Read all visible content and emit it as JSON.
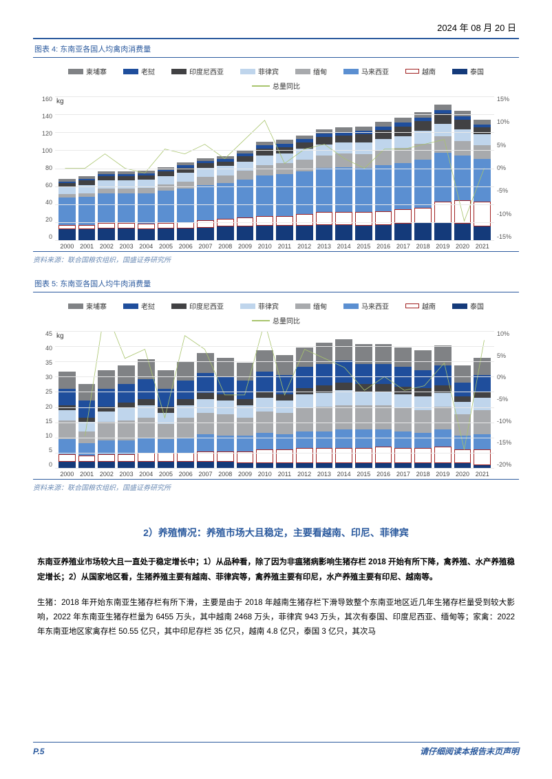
{
  "date": "2024 年 08 月 20 日",
  "chart4": {
    "type": "stacked_bar_with_line",
    "title_num": "图表 4:",
    "title": "东南亚各国人均禽肉消费量",
    "caption": "资料来源：联合国粮农组织，国盛证券研究所",
    "y_unit": "kg",
    "y_left": {
      "min": 0,
      "max": 160,
      "step": 20
    },
    "y_right": {
      "min": -15,
      "max": 15,
      "step": 5,
      "suffix": "%"
    },
    "years": [
      "2000",
      "2001",
      "2002",
      "2003",
      "2004",
      "2005",
      "2006",
      "2007",
      "2008",
      "2009",
      "2010",
      "2011",
      "2012",
      "2013",
      "2014",
      "2015",
      "2016",
      "2017",
      "2018",
      "2019",
      "2020",
      "2021"
    ],
    "series_order": [
      "thailand",
      "vietnam",
      "malaysia",
      "myanmar",
      "philippines",
      "indonesia",
      "laos",
      "cambodia"
    ],
    "series": {
      "cambodia": {
        "label": "柬埔寨",
        "color": "#808285",
        "style": "bar"
      },
      "laos": {
        "label": "老挝",
        "color": "#1f4e9c",
        "style": "bar"
      },
      "indonesia": {
        "label": "配印度尼西亚",
        "real_label": "印度尼西亚",
        "color": "#414143",
        "style": "bar"
      },
      "philippines": {
        "label": "菲律宾",
        "color": "#bfd5ec",
        "style": "bar"
      },
      "myanmar": {
        "label": "缅甸",
        "color": "#a8aaad",
        "style": "bar"
      },
      "malaysia": {
        "label": "马来西亚",
        "color": "#5b8fd1",
        "style": "bar"
      },
      "vietnam": {
        "label": "越南",
        "color": "#ffffff",
        "border": "#a02020",
        "style": "box"
      },
      "thailand": {
        "label": "泰国",
        "color": "#143a7a",
        "style": "bar"
      },
      "total_yoy": {
        "label": "总量同比",
        "color": "#a8c46c",
        "style": "line"
      }
    },
    "stacks": [
      {
        "thailand": 12,
        "vietnam": 5,
        "malaysia": 30,
        "myanmar": 4,
        "philippines": 8,
        "indonesia": 4,
        "laos": 2,
        "cambodia": 3
      },
      {
        "thailand": 12,
        "vietnam": 5,
        "malaysia": 31,
        "myanmar": 4,
        "philippines": 9,
        "indonesia": 5,
        "laos": 2,
        "cambodia": 3
      },
      {
        "thailand": 13,
        "vietnam": 6,
        "malaysia": 33,
        "myanmar": 5,
        "philippines": 9,
        "indonesia": 5,
        "laos": 2,
        "cambodia": 3
      },
      {
        "thailand": 13,
        "vietnam": 6,
        "malaysia": 33,
        "myanmar": 5,
        "philippines": 9,
        "indonesia": 5,
        "laos": 2,
        "cambodia": 3
      },
      {
        "thailand": 12,
        "vietnam": 6,
        "malaysia": 34,
        "myanmar": 6,
        "philippines": 9,
        "indonesia": 5,
        "laos": 2,
        "cambodia": 3
      },
      {
        "thailand": 13,
        "vietnam": 6,
        "malaysia": 36,
        "myanmar": 7,
        "philippines": 9,
        "indonesia": 5,
        "laos": 2,
        "cambodia": 3
      },
      {
        "thailand": 13,
        "vietnam": 7,
        "malaysia": 37,
        "myanmar": 8,
        "philippines": 10,
        "indonesia": 5,
        "laos": 3,
        "cambodia": 3
      },
      {
        "thailand": 14,
        "vietnam": 8,
        "malaysia": 39,
        "myanmar": 9,
        "philippines": 10,
        "indonesia": 5,
        "laos": 3,
        "cambodia": 3
      },
      {
        "thailand": 15,
        "vietnam": 9,
        "malaysia": 39,
        "myanmar": 9,
        "philippines": 10,
        "indonesia": 5,
        "laos": 3,
        "cambodia": 3
      },
      {
        "thailand": 15,
        "vietnam": 10,
        "malaysia": 42,
        "myanmar": 10,
        "philippines": 10,
        "indonesia": 6,
        "laos": 3,
        "cambodia": 3
      },
      {
        "thailand": 16,
        "vietnam": 11,
        "malaysia": 45,
        "myanmar": 11,
        "philippines": 11,
        "indonesia": 7,
        "laos": 4,
        "cambodia": 4
      },
      {
        "thailand": 16,
        "vietnam": 11,
        "malaysia": 46,
        "myanmar": 12,
        "philippines": 11,
        "indonesia": 7,
        "laos": 4,
        "cambodia": 4
      },
      {
        "thailand": 16,
        "vietnam": 13,
        "malaysia": 47,
        "myanmar": 13,
        "philippines": 12,
        "indonesia": 7,
        "laos": 4,
        "cambodia": 4
      },
      {
        "thailand": 17,
        "vietnam": 14,
        "malaysia": 49,
        "myanmar": 14,
        "philippines": 12,
        "indonesia": 8,
        "laos": 4,
        "cambodia": 5
      },
      {
        "thailand": 17,
        "vietnam": 14,
        "malaysia": 50,
        "myanmar": 15,
        "philippines": 12,
        "indonesia": 8,
        "laos": 4,
        "cambodia": 5
      },
      {
        "thailand": 16,
        "vietnam": 15,
        "malaysia": 49,
        "myanmar": 15,
        "philippines": 13,
        "indonesia": 9,
        "laos": 4,
        "cambodia": 5
      },
      {
        "thailand": 17,
        "vietnam": 15,
        "malaysia": 51,
        "myanmar": 16,
        "philippines": 13,
        "indonesia": 10,
        "laos": 4,
        "cambodia": 5
      },
      {
        "thailand": 18,
        "vietnam": 16,
        "malaysia": 51,
        "myanmar": 17,
        "philippines": 13,
        "indonesia": 11,
        "laos": 4,
        "cambodia": 6
      },
      {
        "thailand": 19,
        "vietnam": 17,
        "malaysia": 53,
        "myanmar": 18,
        "philippines": 14,
        "indonesia": 11,
        "laos": 4,
        "cambodia": 6
      },
      {
        "thailand": 19,
        "vietnam": 24,
        "malaysia": 54,
        "myanmar": 18,
        "philippines": 14,
        "indonesia": 11,
        "laos": 4,
        "cambodia": 6
      },
      {
        "thailand": 18,
        "vietnam": 26,
        "malaysia": 50,
        "myanmar": 16,
        "philippines": 13,
        "indonesia": 10,
        "laos": 4,
        "cambodia": 6
      },
      {
        "thailand": 15,
        "vietnam": 28,
        "malaysia": 47,
        "myanmar": 15,
        "philippines": 12,
        "indonesia": 8,
        "laos": 3,
        "cambodia": 5
      }
    ],
    "line": [
      0,
      0,
      3,
      0,
      -1,
      4,
      3,
      5,
      2,
      6,
      10,
      1,
      4,
      5,
      2,
      0,
      4,
      4,
      5,
      6,
      -11,
      0
    ]
  },
  "chart5": {
    "type": "stacked_bar_with_line",
    "title_num": "图表 5:",
    "title": "东南亚各国人均牛肉消费量",
    "caption": "资料来源：联合国粮农组织，国盛证券研究所",
    "y_unit": "kg",
    "y_left": {
      "min": 0,
      "max": 45,
      "step": 5
    },
    "y_right": {
      "min": -20,
      "max": 10,
      "step": 5,
      "suffix": "%"
    },
    "years": [
      "2000",
      "2001",
      "2002",
      "2003",
      "2004",
      "2005",
      "2006",
      "2007",
      "2008",
      "2009",
      "2010",
      "2011",
      "2012",
      "2013",
      "2014",
      "2015",
      "2016",
      "2017",
      "2018",
      "2019",
      "2020",
      "2021"
    ],
    "series_order": [
      "thailand",
      "vietnam",
      "malaysia",
      "myanmar",
      "philippines",
      "indonesia",
      "laos",
      "cambodia"
    ],
    "series": {
      "cambodia": {
        "label": "柬埔寨",
        "color": "#808285",
        "style": "bar"
      },
      "laos": {
        "label": "老挝",
        "color": "#1f4e9c",
        "style": "bar"
      },
      "indonesia": {
        "label": "印度尼西亚",
        "color": "#414143",
        "style": "bar"
      },
      "philippines": {
        "label": "菲律宾",
        "color": "#bfd5ec",
        "style": "bar"
      },
      "myanmar": {
        "label": "缅甸",
        "color": "#a8aaad",
        "style": "bar"
      },
      "malaysia": {
        "label": "马来西亚",
        "color": "#5b8fd1",
        "style": "bar"
      },
      "vietnam": {
        "label": "越南",
        "color": "#ffffff",
        "border": "#a02020",
        "style": "box"
      },
      "thailand": {
        "label": "泰国",
        "color": "#143a7a",
        "style": "bar"
      },
      "total_yoy": {
        "label": "总量同比",
        "color": "#a8c46c",
        "style": "line"
      }
    },
    "stacks": [
      {
        "thailand": 2.0,
        "vietnam": 2.5,
        "malaysia": 5.0,
        "myanmar": 6.0,
        "philippines": 3.5,
        "indonesia": 1.5,
        "laos": 5.5,
        "cambodia": 5.5
      },
      {
        "thailand": 2.0,
        "vietnam": 2.0,
        "malaysia": 4.0,
        "myanmar": 4.0,
        "philippines": 3.0,
        "indonesia": 1.5,
        "laos": 5.5,
        "cambodia": 5.5
      },
      {
        "thailand": 2.0,
        "vietnam": 2.5,
        "malaysia": 4.5,
        "myanmar": 6.0,
        "philippines": 3.5,
        "indonesia": 1.5,
        "laos": 6.0,
        "cambodia": 6.0
      },
      {
        "thailand": 2.0,
        "vietnam": 2.5,
        "malaysia": 4.5,
        "myanmar": 6.5,
        "philippines": 4.0,
        "indonesia": 2.0,
        "laos": 6.0,
        "cambodia": 6.0
      },
      {
        "thailand": 2.0,
        "vietnam": 3.0,
        "malaysia": 5.0,
        "myanmar": 6.5,
        "philippines": 4.0,
        "indonesia": 2.0,
        "laos": 6.5,
        "cambodia": 6.5
      },
      {
        "thailand": 2.0,
        "vietnam": 3.0,
        "malaysia": 4.5,
        "myanmar": 5.0,
        "philippines": 3.5,
        "indonesia": 2.0,
        "laos": 6.0,
        "cambodia": 6.0
      },
      {
        "thailand": 2.0,
        "vietnam": 3.0,
        "malaysia": 5.0,
        "myanmar": 6.5,
        "philippines": 4.0,
        "indonesia": 2.0,
        "laos": 6.0,
        "cambodia": 6.5
      },
      {
        "thailand": 2.0,
        "vietnam": 3.5,
        "malaysia": 5.5,
        "myanmar": 7.0,
        "philippines": 4.5,
        "indonesia": 2.0,
        "laos": 6.5,
        "cambodia": 6.5
      },
      {
        "thailand": 2.0,
        "vietnam": 3.5,
        "malaysia": 5.0,
        "myanmar": 7.0,
        "philippines": 4.5,
        "indonesia": 2.0,
        "laos": 6.0,
        "cambodia": 6.0
      },
      {
        "thailand": 1.5,
        "vietnam": 4.0,
        "malaysia": 5.0,
        "myanmar": 6.0,
        "philippines": 4.0,
        "indonesia": 2.0,
        "laos": 6.0,
        "cambodia": 6.0
      },
      {
        "thailand": 1.5,
        "vietnam": 4.5,
        "malaysia": 5.5,
        "myanmar": 7.0,
        "philippines": 4.5,
        "indonesia": 2.0,
        "laos": 6.5,
        "cambodia": 7.0
      },
      {
        "thailand": 1.5,
        "vietnam": 4.5,
        "malaysia": 5.0,
        "myanmar": 7.0,
        "philippines": 4.0,
        "indonesia": 2.0,
        "laos": 6.5,
        "cambodia": 6.5
      },
      {
        "thailand": 1.5,
        "vietnam": 5.0,
        "malaysia": 5.5,
        "myanmar": 7.5,
        "philippines": 4.5,
        "indonesia": 2.0,
        "laos": 7.0,
        "cambodia": 6.5
      },
      {
        "thailand": 1.5,
        "vietnam": 5.0,
        "malaysia": 5.5,
        "myanmar": 8.0,
        "philippines": 4.5,
        "indonesia": 2.5,
        "laos": 7.0,
        "cambodia": 7.0
      },
      {
        "thailand": 1.5,
        "vietnam": 5.0,
        "malaysia": 6.0,
        "myanmar": 8.0,
        "philippines": 5.0,
        "indonesia": 2.5,
        "laos": 7.0,
        "cambodia": 7.0
      },
      {
        "thailand": 1.5,
        "vietnam": 5.0,
        "malaysia": 6.0,
        "myanmar": 8.0,
        "philippines": 4.5,
        "indonesia": 2.5,
        "laos": 6.5,
        "cambodia": 6.5
      },
      {
        "thailand": 1.5,
        "vietnam": 5.5,
        "malaysia": 5.5,
        "myanmar": 8.0,
        "philippines": 4.5,
        "indonesia": 2.5,
        "laos": 6.5,
        "cambodia": 6.5
      },
      {
        "thailand": 1.5,
        "vietnam": 5.0,
        "malaysia": 5.5,
        "myanmar": 7.5,
        "philippines": 4.5,
        "indonesia": 2.5,
        "laos": 6.5,
        "cambodia": 6.5
      },
      {
        "thailand": 1.5,
        "vietnam": 5.0,
        "malaysia": 5.0,
        "myanmar": 7.5,
        "philippines": 4.5,
        "indonesia": 2.5,
        "laos": 6.0,
        "cambodia": 6.5
      },
      {
        "thailand": 1.5,
        "vietnam": 5.5,
        "malaysia": 5.5,
        "myanmar": 7.5,
        "philippines": 4.5,
        "indonesia": 2.5,
        "laos": 6.5,
        "cambodia": 6.5
      },
      {
        "thailand": 1.5,
        "vietnam": 4.5,
        "malaysia": 4.5,
        "myanmar": 7.0,
        "philippines": 4.0,
        "indonesia": 2.0,
        "laos": 4.5,
        "cambodia": 5.5
      },
      {
        "thailand": 1.0,
        "vietnam": 5.0,
        "malaysia": 5.0,
        "myanmar": 8.0,
        "philippines": 4.0,
        "indonesia": 2.0,
        "laos": 5.5,
        "cambodia": 5.5
      }
    ],
    "line": [
      null,
      -13,
      15,
      4,
      6,
      -9,
      9,
      6,
      -4,
      -4,
      12,
      -4,
      6,
      4,
      2,
      -3,
      0,
      -3,
      -2,
      3,
      -16,
      8
    ]
  },
  "section_heading": "2）养殖情况：养殖市场大且稳定，主要看越南、印尼、菲律宾",
  "para_bold": "东南亚养殖业市场较大且一直处于稳定增长中；1）从品种看，除了因为非瘟猪病影响生猪存栏 2018 开始有所下降，禽养殖、水产养殖稳定增长；2）从国家地区看，生猪养殖主要有越南、菲律宾等，禽养殖主要有印尼，水产养殖主要有印尼、越南等。",
  "para_body": "生猪：2018 年开始东南亚生猪存栏有所下滑，主要是由于 2018 年越南生猪存栏下滑导致整个东南亚地区近几年生猪存栏量受到较大影响，2022 年东南亚生猪存栏量为 6455 万头，其中越南 2468 万头，菲律宾 943 万头，其次有泰国、印度尼西亚、缅甸等；家禽：2022 年东南亚地区家禽存栏 50.55 亿只，其中印尼存栏 35 亿只，越南 4.8 亿只，泰国 3 亿只，其次马",
  "footer": {
    "page": "P.5",
    "disclaimer": "请仔细阅读本报告末页声明"
  }
}
